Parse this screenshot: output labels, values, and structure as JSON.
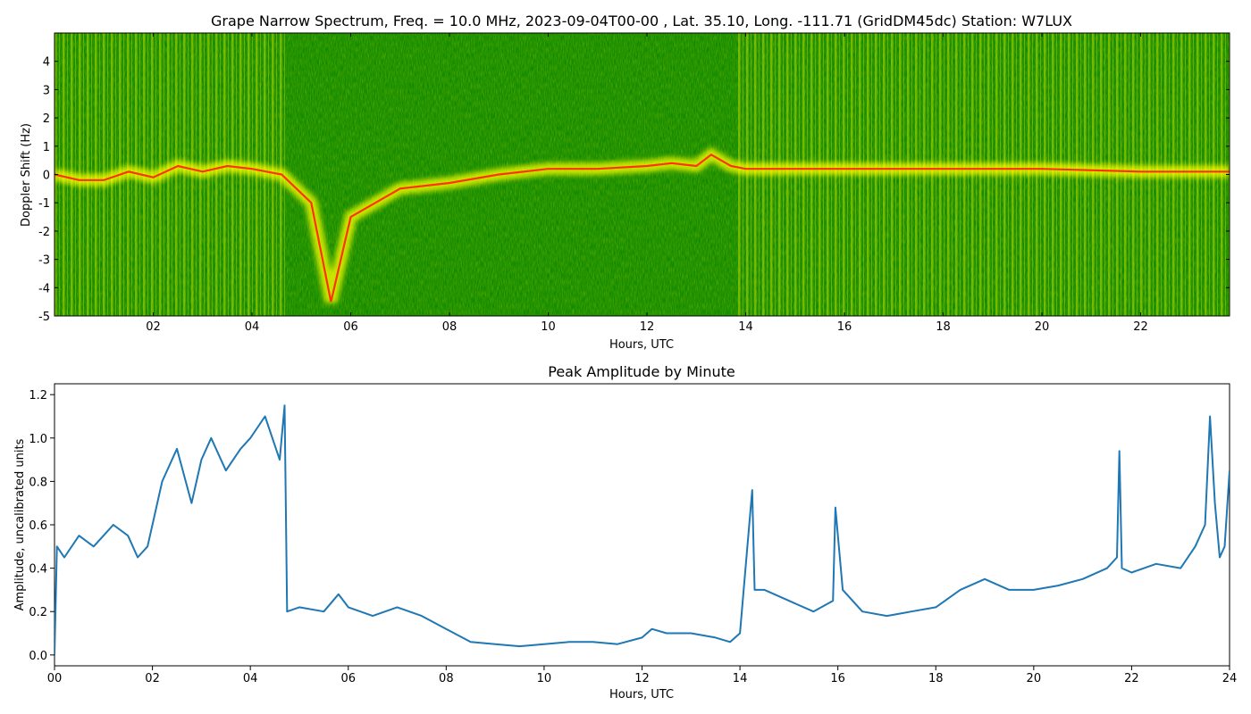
{
  "chart_data": [
    {
      "type": "heatmap",
      "title": "Grape Narrow Spectrum, Freq. = 10.0 MHz, 2023-09-04T00-00 , Lat.  35.10, Long. -111.71 (GridDM45dc) Station: W7LUX",
      "xlabel": "Hours, UTC",
      "ylabel": "Doppler Shift (Hz)",
      "xlim": [
        0,
        23.8
      ],
      "ylim": [
        -5,
        5
      ],
      "xticks": [
        "02",
        "04",
        "06",
        "08",
        "10",
        "12",
        "14",
        "16",
        "18",
        "20",
        "22"
      ],
      "yticks": [
        "-5",
        "-4",
        "-3",
        "-2",
        "-1",
        "0",
        "1",
        "2",
        "3",
        "4"
      ],
      "colors": {
        "background": "#118a00",
        "mid": "#a0d400",
        "high": "#ffff00",
        "peak": "#ff3300"
      },
      "doppler_trace": {
        "x": [
          0,
          0.5,
          1,
          1.5,
          2,
          2.5,
          3,
          3.5,
          4,
          4.6,
          5.2,
          5.6,
          6,
          7,
          8,
          9,
          10,
          11,
          12,
          12.5,
          13,
          13.3,
          13.7,
          14,
          16,
          18,
          20,
          22,
          23.8
        ],
        "y": [
          0,
          -0.2,
          -0.2,
          0.1,
          -0.1,
          0.3,
          0.1,
          0.3,
          0.2,
          0,
          -1,
          -4.5,
          -1.5,
          -0.5,
          -0.3,
          0,
          0.2,
          0.2,
          0.3,
          0.4,
          0.3,
          0.7,
          0.3,
          0.2,
          0.2,
          0.2,
          0.2,
          0.1,
          0.1
        ]
      }
    },
    {
      "type": "line",
      "title": "Peak Amplitude by Minute",
      "xlabel": "Hours, UTC",
      "ylabel": "Amplitude, uncalibrated units",
      "xlim": [
        0,
        24
      ],
      "ylim": [
        -0.05,
        1.25
      ],
      "xticks": [
        "00",
        "02",
        "04",
        "06",
        "08",
        "10",
        "12",
        "14",
        "16",
        "18",
        "20",
        "22",
        "24"
      ],
      "yticks": [
        "0.0",
        "0.2",
        "0.4",
        "0.6",
        "0.8",
        "1.0",
        "1.2"
      ],
      "series_color": "#1f77b4",
      "x": [
        0,
        0.05,
        0.2,
        0.5,
        0.8,
        1.0,
        1.2,
        1.5,
        1.7,
        1.9,
        2.0,
        2.2,
        2.5,
        2.8,
        3.0,
        3.2,
        3.5,
        3.8,
        4.0,
        4.3,
        4.6,
        4.7,
        4.75,
        5.0,
        5.5,
        5.8,
        6.0,
        6.5,
        7.0,
        7.5,
        8.0,
        8.5,
        9.0,
        9.5,
        10.0,
        10.5,
        11.0,
        11.5,
        12.0,
        12.2,
        12.5,
        13.0,
        13.5,
        13.8,
        14.0,
        14.25,
        14.3,
        14.5,
        15.0,
        15.5,
        15.9,
        15.95,
        16.1,
        16.5,
        17.0,
        17.5,
        18.0,
        18.5,
        19.0,
        19.5,
        20.0,
        20.5,
        21.0,
        21.5,
        21.7,
        21.75,
        21.8,
        22.0,
        22.5,
        23.0,
        23.3,
        23.5,
        23.6,
        23.7,
        23.8,
        23.9,
        24.0
      ],
      "y": [
        0.0,
        0.5,
        0.45,
        0.55,
        0.5,
        0.55,
        0.6,
        0.55,
        0.45,
        0.5,
        0.6,
        0.8,
        0.95,
        0.7,
        0.9,
        1.0,
        0.85,
        0.95,
        1.0,
        1.1,
        0.9,
        1.15,
        0.2,
        0.22,
        0.2,
        0.28,
        0.22,
        0.18,
        0.22,
        0.18,
        0.12,
        0.06,
        0.05,
        0.04,
        0.05,
        0.06,
        0.06,
        0.05,
        0.08,
        0.12,
        0.1,
        0.1,
        0.08,
        0.06,
        0.1,
        0.76,
        0.3,
        0.3,
        0.25,
        0.2,
        0.25,
        0.68,
        0.3,
        0.2,
        0.18,
        0.2,
        0.22,
        0.3,
        0.35,
        0.3,
        0.3,
        0.32,
        0.35,
        0.4,
        0.45,
        0.94,
        0.4,
        0.38,
        0.42,
        0.4,
        0.5,
        0.6,
        1.1,
        0.7,
        0.45,
        0.5,
        0.85
      ]
    }
  ]
}
